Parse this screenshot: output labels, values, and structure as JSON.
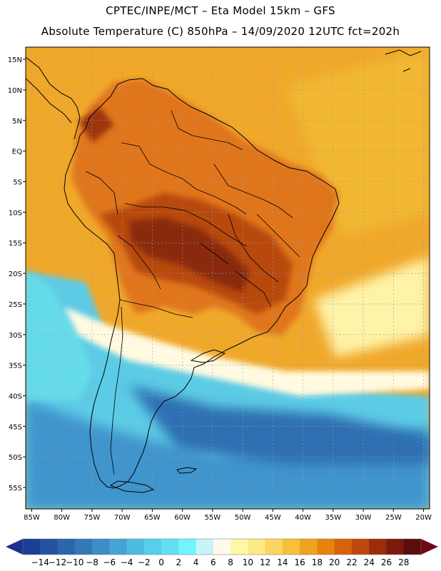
{
  "header": {
    "title_line1": "CPTEC/INPE/MCT –  Eta Model 15km – GFS",
    "title_line2": "Absolute Temperature (C) 850hPa – 14/09/2020 12UTC fct=202h"
  },
  "map": {
    "lon_labels": [
      "85W",
      "80W",
      "75W",
      "70W",
      "65W",
      "60W",
      "55W",
      "50W",
      "45W",
      "40W",
      "35W",
      "30W",
      "25W",
      "20W"
    ],
    "lat_labels": [
      "15N",
      "10N",
      "5N",
      "EQ",
      "5S",
      "10S",
      "15S",
      "20S",
      "25S",
      "30S",
      "35S",
      "40S",
      "45S",
      "50S",
      "55S"
    ],
    "lon_range": [
      -86,
      -19
    ],
    "lat_range": [
      17,
      -58.5
    ]
  },
  "colorbar": {
    "labels": [
      "-14",
      "-12",
      "-10",
      "-8",
      "-6",
      "-4",
      "-2",
      "0",
      "2",
      "4",
      "6",
      "8",
      "10",
      "12",
      "14",
      "16",
      "18",
      "20",
      "22",
      "24",
      "26",
      "28"
    ],
    "colors": [
      "#1b3f94",
      "#24549f",
      "#2b66ad",
      "#3478b8",
      "#3d8dc7",
      "#45a4d4",
      "#4dbbe1",
      "#58cfe8",
      "#62dff0",
      "#6ff5fb",
      "#c9f3fb",
      "#fffaea",
      "#fff7a4",
      "#fde985",
      "#fbd461",
      "#f6bf3c",
      "#eea31e",
      "#e8820b",
      "#d6620a",
      "#bd480b",
      "#9a2e0b",
      "#7a1a0a",
      "#5a0d0d"
    ],
    "low_arrow_color": "#1e2f8f",
    "high_arrow_color": "#6b0a16"
  }
}
